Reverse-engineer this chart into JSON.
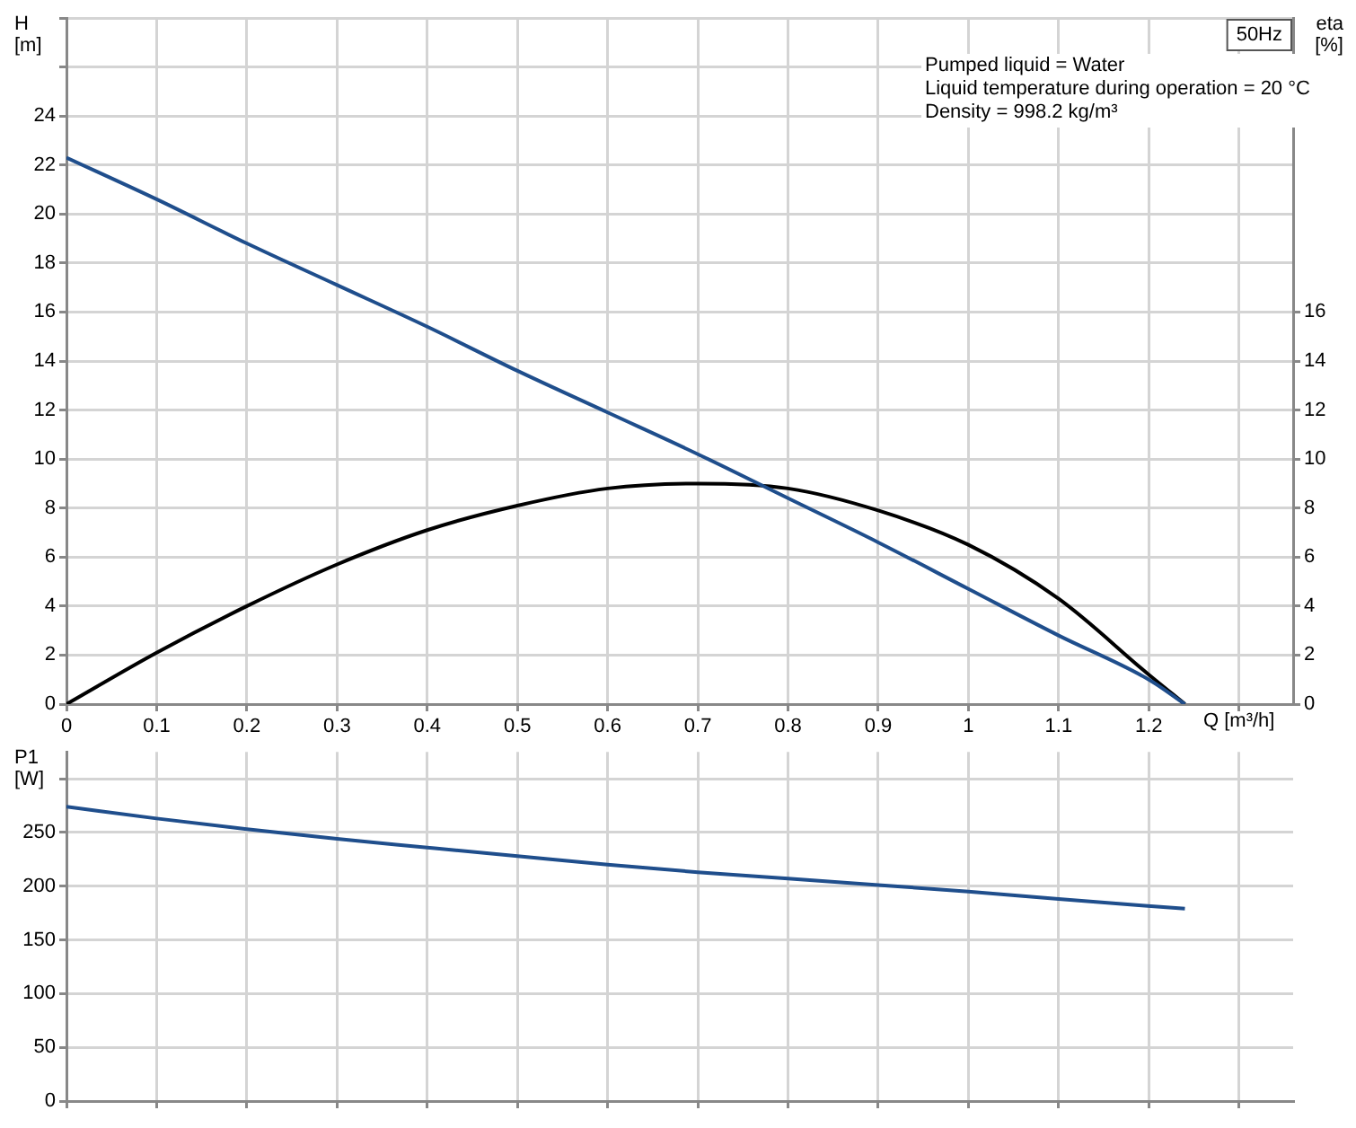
{
  "chart_data": [
    {
      "type": "line",
      "xlabel": "Q [m³/h]",
      "ylabel": "H [m]",
      "y2label": "eta [%]",
      "x": [
        0,
        0.1,
        0.2,
        0.3,
        0.4,
        0.5,
        0.6,
        0.7,
        0.8,
        0.9,
        1.0,
        1.1,
        1.2,
        1.24
      ],
      "series": [
        {
          "color": "#1f4e8c",
          "values": [
            22.3,
            20.6,
            18.8,
            17.1,
            15.4,
            13.6,
            11.9,
            10.2,
            8.4,
            6.6,
            4.7,
            2.8,
            1.0,
            0
          ]
        },
        {
          "color": "#000000",
          "axis": "y2",
          "values": [
            0,
            2.1,
            4.0,
            5.7,
            7.1,
            8.1,
            8.8,
            9.0,
            8.8,
            7.9,
            6.5,
            4.3,
            1.2,
            0
          ]
        }
      ],
      "xlim": [
        0,
        1.36
      ],
      "xticks": [
        0,
        0.1,
        0.2,
        0.3,
        0.4,
        0.5,
        0.6,
        0.7,
        0.8,
        0.9,
        1.0,
        1.1,
        1.2,
        {
          "value": 1.3,
          "label": null
        }
      ],
      "ylim": [
        0,
        28
      ],
      "yticks": [
        0,
        2,
        4,
        6,
        8,
        10,
        12,
        14,
        16,
        18,
        20,
        22,
        24,
        {
          "value": 26,
          "label": null
        },
        {
          "value": 28,
          "label": null
        }
      ],
      "y2lim": [
        0,
        28
      ],
      "y2ticks": [
        0,
        2,
        4,
        6,
        8,
        10,
        12,
        14,
        16
      ],
      "annotations": [
        "50Hz",
        "Pumped liquid = Water",
        "Liquid temperature during operation = 20 °C",
        "Density = 998.2 kg/m³"
      ],
      "grid": true,
      "legend": false,
      "marker": "none",
      "line_style": "solid"
    },
    {
      "type": "line",
      "ylabel": "P1 [W]",
      "x": [
        0,
        0.1,
        0.2,
        0.3,
        0.4,
        0.5,
        0.6,
        0.7,
        0.8,
        0.9,
        1.0,
        1.1,
        1.24
      ],
      "series": [
        {
          "color": "#1f4e8c",
          "values": [
            274,
            263,
            253,
            244,
            236,
            228,
            220,
            213,
            207,
            201,
            195,
            188,
            179
          ]
        }
      ],
      "xlim": [
        0,
        1.36
      ],
      "xticks": [
        0,
        0.1,
        0.2,
        0.3,
        0.4,
        0.5,
        0.6,
        0.7,
        0.8,
        0.9,
        1.0,
        1.1,
        1.2,
        {
          "value": 1.3,
          "label": null
        }
      ],
      "ylim": [
        0,
        325
      ],
      "yticks": [
        0,
        50,
        100,
        150,
        200,
        250,
        {
          "value": 300,
          "label": null
        }
      ],
      "tick_labels": "y",
      "grid": true,
      "legend": false,
      "marker": "none",
      "line_style": "solid"
    }
  ]
}
